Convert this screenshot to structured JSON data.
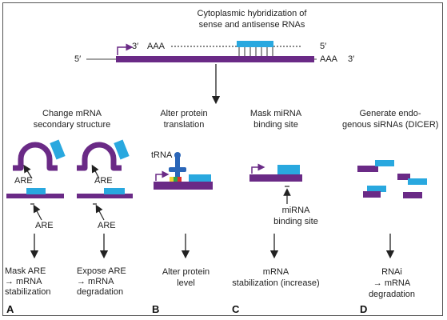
{
  "top": {
    "title_line1": "Cytoplasmic hybridization of",
    "title_line2": "sense and antisense RNAs",
    "antisense_3prime": "3′",
    "antisense_polya": "AAA",
    "antisense_5prime": "5′",
    "sense_5prime": "5′",
    "sense_polya": "AAA",
    "sense_3prime": "3′"
  },
  "panels": {
    "a": {
      "letter": "A",
      "header_line1": "Change mRNA",
      "header_line2": "secondary structure",
      "are_label": "ARE",
      "outcome_left_line1": "Mask ARE",
      "outcome_left_line2": "→ mRNA",
      "outcome_left_line3": "stabilization",
      "outcome_right_line1": "Expose ARE",
      "outcome_right_line2": "→ mRNA",
      "outcome_right_line3": "degradation"
    },
    "b": {
      "letter": "B",
      "header_line1": "Alter protein",
      "header_line2": "translation",
      "trna_label": "tRNA",
      "outcome_line1": "Alter protein",
      "outcome_line2": "level"
    },
    "c": {
      "letter": "C",
      "header_line1": "Mask miRNA",
      "header_line2": "binding site",
      "site_label_line1": "miRNA",
      "site_label_line2": "binding site",
      "outcome_line1": "mRNA",
      "outcome_line2": "stabilization (increase)"
    },
    "d": {
      "letter": "D",
      "header_line1": "Generate endo-",
      "header_line2": "genous siRNAs (DICER)",
      "outcome_line1": "RNAi",
      "outcome_line2": "→ mRNA",
      "outcome_line3": "degradation"
    }
  },
  "colors": {
    "sense_rna": "#6a2a86",
    "antisense_rna": "#29a8df",
    "trna": "#2a66b8",
    "codon_yellow": "#f2d22e",
    "codon_green": "#2ea34a",
    "codon_red": "#e0312b"
  }
}
